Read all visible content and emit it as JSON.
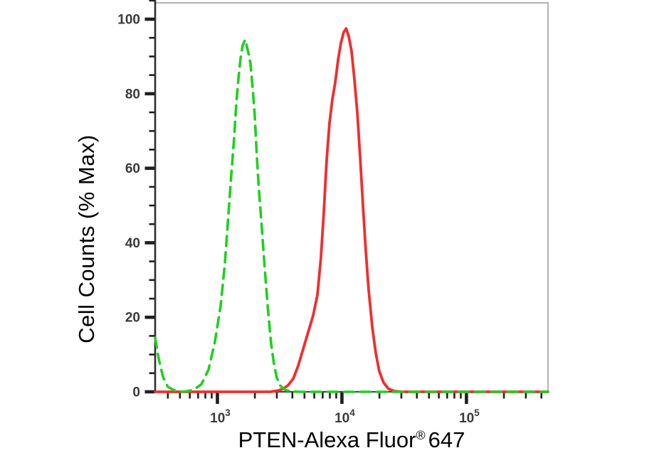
{
  "figure": {
    "background": "#ffffff",
    "xlabel_main": "PTEN-Alexa Fluor",
    "xlabel_reg_mark": "®",
    "xlabel_suffix": "647"
  },
  "colors": {
    "green_curve": "#1dd11d",
    "red_curve": "#f02e2e",
    "axis_spine": "#2e2e2e",
    "tick": "#1f1f1f",
    "tick_label": "#3a3a3a",
    "box_border": "#b3b3b3",
    "axis_title": "#000000"
  },
  "chart_data": {
    "type": "line",
    "subtype": "flow-cytometry-histogram-overlay",
    "title": "",
    "xlabel": "PTEN-Alexa Fluor® 647",
    "ylabel": "Cell Counts (% Max)",
    "x_scale": "log10",
    "xlim_log10": [
      2.5,
      5.655
    ],
    "ylim": [
      0,
      100
    ],
    "x_major_tick_exponents": [
      3,
      4,
      5
    ],
    "x_major_tick_labels": [
      "10^3",
      "10^4",
      "10^5"
    ],
    "x_minor_ticks_rule": "multiples 2-9 within each decade",
    "y_major_ticks": [
      0,
      20,
      40,
      60,
      80,
      100
    ],
    "y_minor_step": 5,
    "grid": false,
    "legend": "none",
    "peaks": [
      {
        "series": "green-dashed",
        "x_log10": 3.22,
        "x_approx": 1600,
        "height_pct": 94.5
      },
      {
        "series": "red-solid",
        "x_log10": 4.03,
        "x_approx": 10800,
        "height_pct": 97.5
      }
    ],
    "series": [
      {
        "name": "green-dashed",
        "color": "#1dd11d",
        "line_style": "dashed",
        "dash": [
          14,
          9
        ],
        "stroke_width": 3.6,
        "points": [
          [
            2.5,
            14.5
          ],
          [
            2.529,
            8.8
          ],
          [
            2.563,
            4.0
          ],
          [
            2.603,
            1.3
          ],
          [
            2.66,
            0.3
          ],
          [
            2.728,
            0.0
          ],
          [
            2.808,
            0.5
          ],
          [
            2.871,
            2.0
          ],
          [
            2.929,
            6.0
          ],
          [
            2.98,
            13.5
          ],
          [
            3.026,
            23.0
          ],
          [
            3.06,
            34.5
          ],
          [
            3.089,
            48.0
          ],
          [
            3.111,
            58.0
          ],
          [
            3.134,
            68.0
          ],
          [
            3.151,
            77.0
          ],
          [
            3.169,
            84.0
          ],
          [
            3.186,
            89.5
          ],
          [
            3.203,
            93.0
          ],
          [
            3.223,
            94.5
          ],
          [
            3.249,
            91.0
          ],
          [
            3.266,
            88.0
          ],
          [
            3.283,
            81.5
          ],
          [
            3.3,
            74.0
          ],
          [
            3.317,
            63.0
          ],
          [
            3.334,
            54.0
          ],
          [
            3.357,
            44.0
          ],
          [
            3.38,
            33.0
          ],
          [
            3.409,
            21.0
          ],
          [
            3.431,
            13.0
          ],
          [
            3.454,
            7.5
          ],
          [
            3.477,
            3.8
          ],
          [
            3.506,
            1.6
          ],
          [
            3.546,
            0.5
          ],
          [
            3.597,
            0.1
          ],
          [
            3.654,
            0.0
          ],
          [
            5.655,
            0.0
          ]
        ]
      },
      {
        "name": "red-solid",
        "color": "#f02e2e",
        "line_style": "solid",
        "dash": [],
        "stroke_width": 3.8,
        "points": [
          [
            2.5,
            0.0
          ],
          [
            3.426,
            0.0
          ],
          [
            3.483,
            0.3
          ],
          [
            3.529,
            0.8
          ],
          [
            3.569,
            1.8
          ],
          [
            3.609,
            3.5
          ],
          [
            3.649,
            7.0
          ],
          [
            3.689,
            11.5
          ],
          [
            3.729,
            16.0
          ],
          [
            3.769,
            20.5
          ],
          [
            3.803,
            26.0
          ],
          [
            3.831,
            36.0
          ],
          [
            3.854,
            48.0
          ],
          [
            3.877,
            62.0
          ],
          [
            3.9,
            72.0
          ],
          [
            3.923,
            78.5
          ],
          [
            3.946,
            83.0
          ],
          [
            3.969,
            89.0
          ],
          [
            3.991,
            93.5
          ],
          [
            4.014,
            96.5
          ],
          [
            4.034,
            97.5
          ],
          [
            4.054,
            95.5
          ],
          [
            4.077,
            91.5
          ],
          [
            4.1,
            84.0
          ],
          [
            4.123,
            75.0
          ],
          [
            4.146,
            63.0
          ],
          [
            4.169,
            50.0
          ],
          [
            4.191,
            38.0
          ],
          [
            4.214,
            27.5
          ],
          [
            4.243,
            17.5
          ],
          [
            4.271,
            10.5
          ],
          [
            4.3,
            5.5
          ],
          [
            4.334,
            2.5
          ],
          [
            4.374,
            0.8
          ],
          [
            4.42,
            0.2
          ],
          [
            4.483,
            0.0
          ],
          [
            5.655,
            0.0
          ]
        ]
      }
    ]
  }
}
